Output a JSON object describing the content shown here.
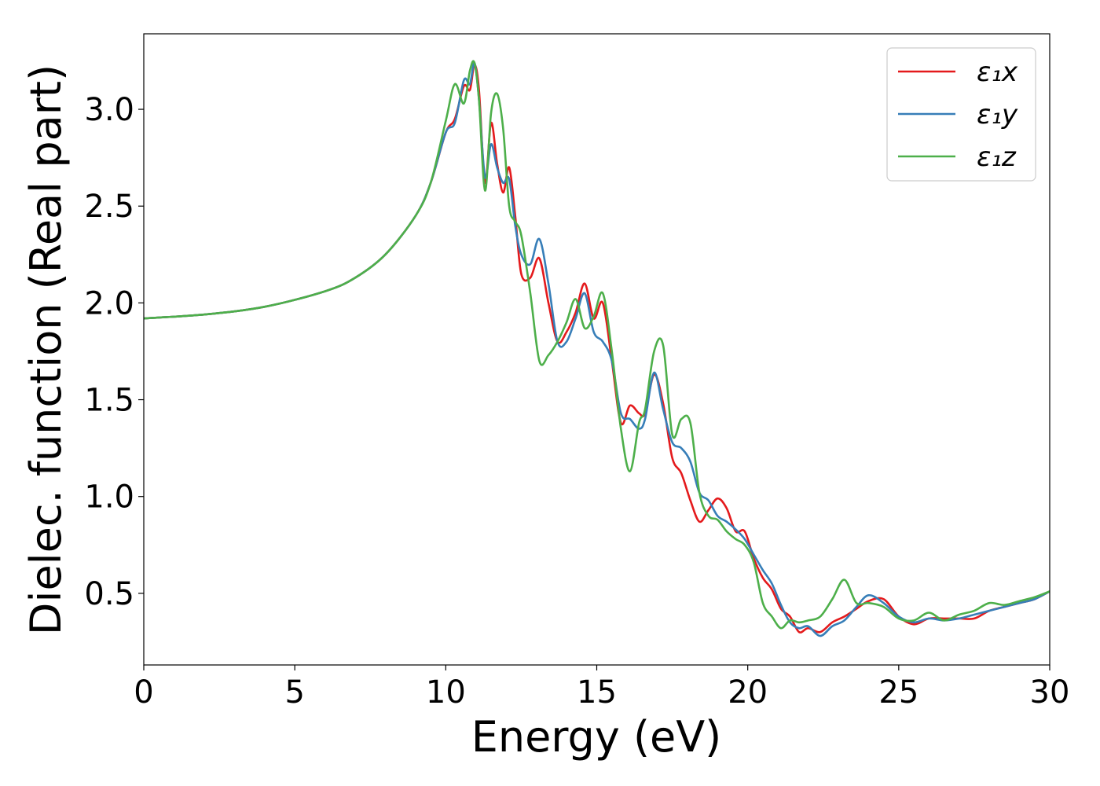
{
  "chart_data": {
    "type": "line",
    "xlabel": "Energy (eV)",
    "ylabel": "Dielec. function (Real part)",
    "xlim": [
      0,
      30
    ],
    "ylim": [
      0.13,
      3.39
    ],
    "xticks": [
      0,
      5,
      10,
      15,
      20,
      25,
      30
    ],
    "xtick_labels": [
      "0",
      "5",
      "10",
      "15",
      "20",
      "25",
      "30"
    ],
    "yticks": [
      0.5,
      1.0,
      1.5,
      2.0,
      2.5,
      3.0
    ],
    "ytick_labels": [
      "0.5",
      "1.0",
      "1.5",
      "2.0",
      "2.5",
      "3.0"
    ],
    "grid": false,
    "legend_position": "top-right",
    "series": [
      {
        "name": "ε₁x",
        "color": "#e41a1c",
        "x": [
          0,
          2,
          4,
          6,
          7,
          8,
          9,
          9.5,
          10,
          10.3,
          10.6,
          10.8,
          10.95,
          11.1,
          11.3,
          11.5,
          11.7,
          11.9,
          12.1,
          12.3,
          12.5,
          12.8,
          13.1,
          13.4,
          13.7,
          14.0,
          14.3,
          14.6,
          14.9,
          15.2,
          15.5,
          15.8,
          16.1,
          16.4,
          16.6,
          16.9,
          17.2,
          17.5,
          17.8,
          18.1,
          18.4,
          18.7,
          19.0,
          19.3,
          19.6,
          19.9,
          20.2,
          20.5,
          20.8,
          21.1,
          21.4,
          21.7,
          22.0,
          22.4,
          22.8,
          23.2,
          23.6,
          24.0,
          24.5,
          25.0,
          25.5,
          26.0,
          26.5,
          27.0,
          27.5,
          28.0,
          28.5,
          29.0,
          29.5,
          30.0
        ],
        "values": [
          1.92,
          1.94,
          1.98,
          2.06,
          2.13,
          2.25,
          2.45,
          2.62,
          2.88,
          2.95,
          3.12,
          3.1,
          3.23,
          3.1,
          2.62,
          2.93,
          2.72,
          2.57,
          2.7,
          2.45,
          2.15,
          2.13,
          2.23,
          2.0,
          1.8,
          1.85,
          1.95,
          2.1,
          1.92,
          2.0,
          1.7,
          1.38,
          1.47,
          1.43,
          1.43,
          1.63,
          1.48,
          1.2,
          1.12,
          0.98,
          0.87,
          0.93,
          0.99,
          0.94,
          0.82,
          0.82,
          0.68,
          0.58,
          0.52,
          0.42,
          0.38,
          0.3,
          0.32,
          0.3,
          0.35,
          0.38,
          0.42,
          0.46,
          0.47,
          0.38,
          0.34,
          0.37,
          0.37,
          0.37,
          0.37,
          0.41,
          0.43,
          0.45,
          0.47,
          0.51
        ]
      },
      {
        "name": "ε₁y",
        "color": "#377eb8",
        "x": [
          0,
          2,
          4,
          6,
          7,
          8,
          9,
          9.5,
          10,
          10.3,
          10.6,
          10.8,
          10.95,
          11.1,
          11.3,
          11.5,
          11.7,
          11.9,
          12.1,
          12.3,
          12.5,
          12.8,
          13.1,
          13.4,
          13.7,
          14.0,
          14.3,
          14.6,
          14.9,
          15.2,
          15.5,
          15.8,
          16.1,
          16.4,
          16.6,
          16.9,
          17.2,
          17.5,
          17.8,
          18.1,
          18.4,
          18.7,
          19.0,
          19.3,
          19.6,
          19.9,
          20.2,
          20.5,
          20.8,
          21.1,
          21.4,
          21.7,
          22.0,
          22.4,
          22.8,
          23.2,
          23.6,
          24.0,
          24.5,
          25.0,
          25.5,
          26.0,
          26.5,
          27.0,
          27.5,
          28.0,
          28.5,
          29.0,
          29.5,
          30.0
        ],
        "values": [
          1.92,
          1.94,
          1.98,
          2.06,
          2.13,
          2.25,
          2.45,
          2.62,
          2.88,
          2.93,
          3.15,
          3.13,
          3.24,
          3.05,
          2.65,
          2.82,
          2.7,
          2.62,
          2.64,
          2.4,
          2.25,
          2.2,
          2.33,
          2.1,
          1.8,
          1.8,
          1.92,
          2.05,
          1.85,
          1.8,
          1.7,
          1.43,
          1.4,
          1.35,
          1.4,
          1.64,
          1.45,
          1.28,
          1.25,
          1.18,
          1.02,
          0.98,
          0.9,
          0.87,
          0.83,
          0.78,
          0.7,
          0.62,
          0.55,
          0.44,
          0.35,
          0.32,
          0.33,
          0.28,
          0.33,
          0.36,
          0.43,
          0.49,
          0.45,
          0.38,
          0.35,
          0.37,
          0.36,
          0.37,
          0.39,
          0.41,
          0.43,
          0.45,
          0.47,
          0.51
        ]
      },
      {
        "name": "ε₁z",
        "color": "#4daf4a",
        "x": [
          0,
          2,
          4,
          6,
          7,
          8,
          9,
          9.5,
          10,
          10.3,
          10.6,
          10.8,
          10.95,
          11.1,
          11.3,
          11.5,
          11.7,
          11.9,
          12.1,
          12.3,
          12.5,
          12.8,
          13.1,
          13.4,
          13.7,
          14.0,
          14.3,
          14.6,
          14.9,
          15.2,
          15.5,
          15.8,
          16.1,
          16.4,
          16.6,
          16.9,
          17.2,
          17.5,
          17.8,
          18.1,
          18.4,
          18.7,
          19.0,
          19.3,
          19.6,
          19.9,
          20.2,
          20.5,
          20.8,
          21.1,
          21.4,
          21.7,
          22.0,
          22.4,
          22.8,
          23.2,
          23.6,
          24.0,
          24.5,
          25.0,
          25.5,
          26.0,
          26.5,
          27.0,
          27.5,
          28.0,
          28.5,
          29.0,
          29.5,
          30.0
        ],
        "values": [
          1.92,
          1.94,
          1.98,
          2.06,
          2.13,
          2.25,
          2.45,
          2.62,
          2.94,
          3.13,
          3.03,
          3.2,
          3.24,
          3.05,
          2.58,
          2.98,
          3.08,
          2.9,
          2.5,
          2.42,
          2.35,
          2.05,
          1.7,
          1.73,
          1.8,
          1.9,
          2.02,
          1.87,
          1.93,
          2.05,
          1.75,
          1.35,
          1.13,
          1.38,
          1.45,
          1.75,
          1.78,
          1.32,
          1.4,
          1.38,
          1.02,
          0.9,
          0.88,
          0.82,
          0.78,
          0.75,
          0.66,
          0.45,
          0.38,
          0.32,
          0.36,
          0.35,
          0.36,
          0.38,
          0.47,
          0.57,
          0.45,
          0.45,
          0.43,
          0.37,
          0.36,
          0.4,
          0.36,
          0.39,
          0.41,
          0.45,
          0.44,
          0.46,
          0.48,
          0.51
        ]
      }
    ]
  }
}
